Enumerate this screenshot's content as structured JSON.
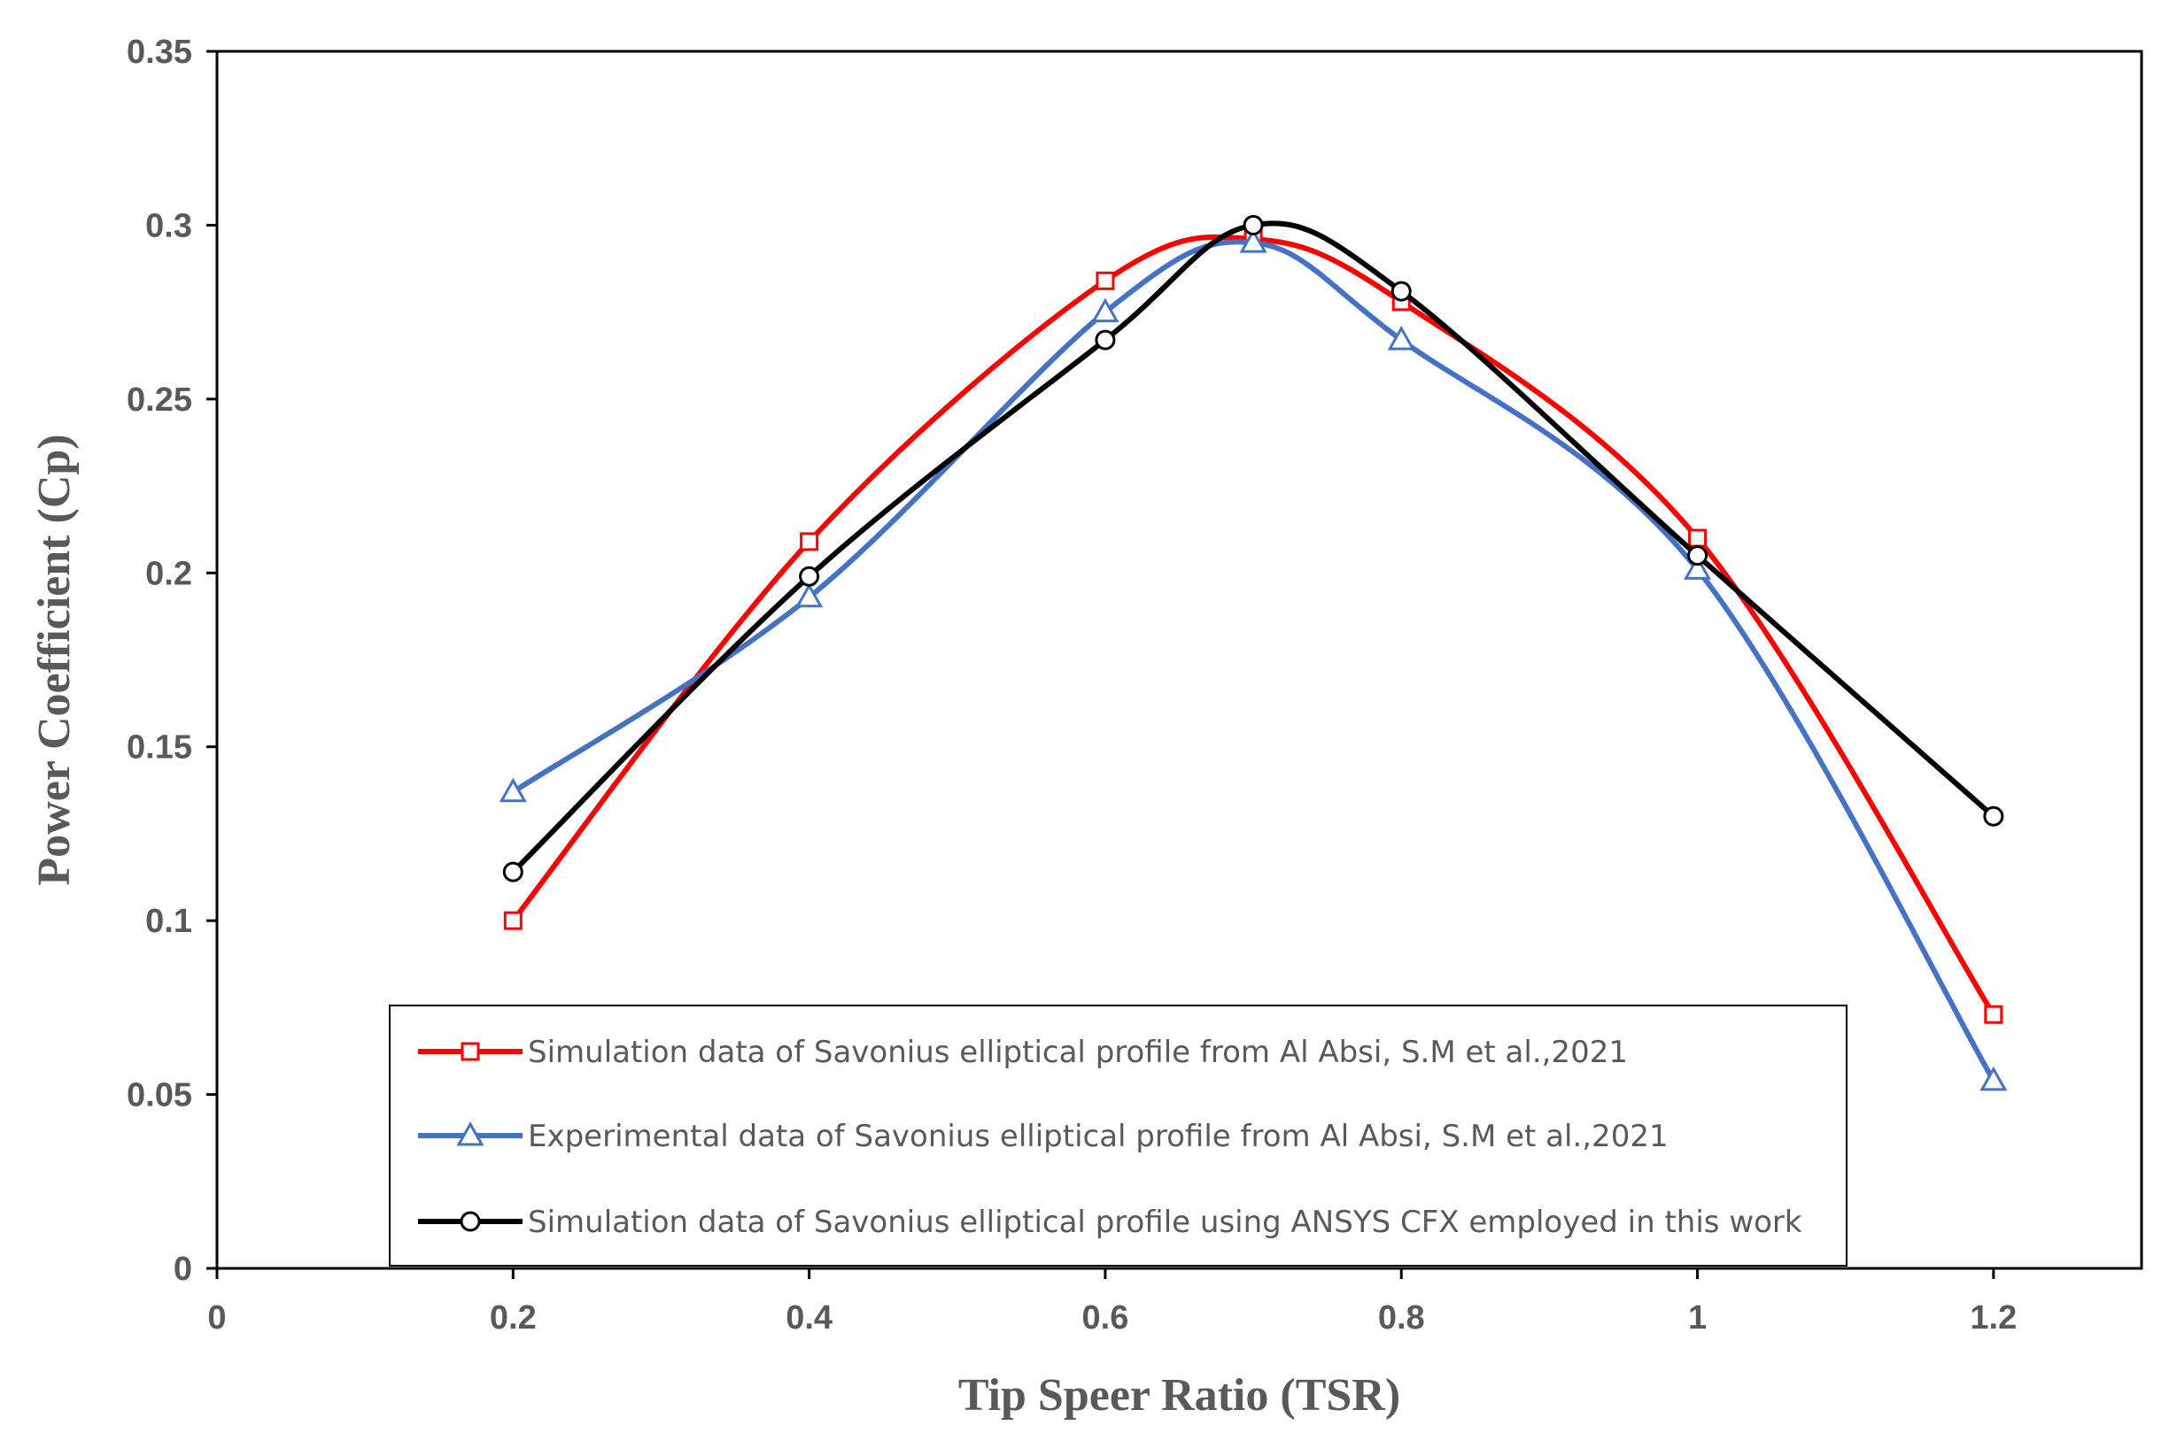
{
  "chart_data": {
    "type": "line",
    "title": "",
    "xlabel": "Tip Speer Ratio (TSR)",
    "ylabel": "Power Coefficient (Cp)",
    "xlim": [
      0,
      1.3
    ],
    "ylim": [
      0,
      0.35
    ],
    "xticks": [
      0,
      0.2,
      0.4,
      0.6,
      0.8,
      1,
      1.2
    ],
    "xtick_labels": [
      "0",
      "0.2",
      "0.4",
      "0.6",
      "0.8",
      "1",
      "1.2"
    ],
    "yticks": [
      0,
      0.05,
      0.1,
      0.15,
      0.2,
      0.25,
      0.3,
      0.35
    ],
    "ytick_labels": [
      "0",
      "0.05",
      "0.1",
      "0.15",
      "0.2",
      "0.25",
      "0.3",
      "0.35"
    ],
    "grid": false,
    "legend_position": "bottom-center",
    "series": [
      {
        "name": "Simulation data of Savonius elliptical profile from Al Absi, S.M et al.,2021",
        "color": "#ff0000",
        "marker": "square",
        "smooth": true,
        "x": [
          0.2,
          0.4,
          0.6,
          0.7,
          0.8,
          1.0,
          1.2
        ],
        "y": [
          0.1,
          0.209,
          0.284,
          0.296,
          0.278,
          0.21,
          0.073
        ]
      },
      {
        "name": "Experimental  data of Savonius elliptical profile from Al Absi, S.M et al.,2021",
        "color": "#4472c4",
        "marker": "triangle",
        "smooth": true,
        "x": [
          0.2,
          0.4,
          0.6,
          0.7,
          0.8,
          1.0,
          1.2
        ],
        "y": [
          0.137,
          0.193,
          0.275,
          0.295,
          0.267,
          0.201,
          0.054
        ]
      },
      {
        "name": "Simulation data of Savonius elliptical profile using ANSYS CFX employed in this work",
        "color": "#000000",
        "marker": "circle",
        "smooth": true,
        "x": [
          0.2,
          0.4,
          0.6,
          0.7,
          0.8,
          1.0,
          1.2
        ],
        "y": [
          0.114,
          0.199,
          0.267,
          0.3,
          0.281,
          0.205,
          0.13
        ]
      }
    ]
  }
}
